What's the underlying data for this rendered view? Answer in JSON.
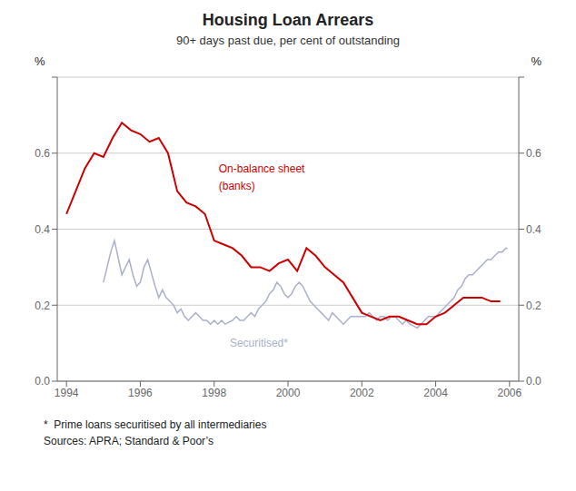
{
  "chart_data": {
    "type": "line",
    "title": "Housing Loan Arrears",
    "subtitle": "90+ days past due, per cent of outstanding",
    "ylabel": "%",
    "y2label": "%",
    "annotations": [
      "*  Prime loans securitised by all intermediaries",
      "Sources: APRA; Standard & Poor’s"
    ],
    "xlim": [
      1993.75,
      2006.25
    ],
    "xticks": [
      1994,
      1996,
      1998,
      2000,
      2002,
      2004,
      2006
    ],
    "ylim": [
      0.0,
      0.8
    ],
    "yticks": [
      {
        "value": 0.0,
        "label": "0.0"
      },
      0.2,
      0.4,
      0.6,
      {
        "value": 0.8,
        "label": null
      }
    ],
    "y2lim": [
      0.0,
      0.8
    ],
    "y2ticks": [
      {
        "value": 0.0,
        "label": "0.0"
      },
      0.2,
      0.4,
      0.6,
      {
        "value": 0.8,
        "label": null
      }
    ],
    "grid": "y",
    "series": [
      {
        "name": "Securitised*",
        "color": "#aab0cc",
        "x": [
          1995.0,
          1995.1,
          1995.2,
          1995.3,
          1995.5,
          1995.6,
          1995.7,
          1995.8,
          1995.9,
          1996.0,
          1996.1,
          1996.2,
          1996.4,
          1996.5,
          1996.6,
          1996.7,
          1996.8,
          1996.9,
          1997.0,
          1997.1,
          1997.2,
          1997.3,
          1997.5,
          1997.6,
          1997.7,
          1997.8,
          1997.9,
          1998.0,
          1998.1,
          1998.2,
          1998.3,
          1998.5,
          1998.6,
          1998.7,
          1998.8,
          1998.9,
          1999.0,
          1999.1,
          1999.2,
          1999.3,
          1999.4,
          1999.5,
          1999.6,
          1999.7,
          1999.8,
          1999.9,
          2000.0,
          2000.1,
          2000.2,
          2000.3,
          2000.4,
          2000.5,
          2000.6,
          2000.7,
          2000.8,
          2000.9,
          2001.0,
          2001.1,
          2001.2,
          2001.3,
          2001.4,
          2001.5,
          2001.6,
          2001.7,
          2001.8,
          2001.9,
          2002.0,
          2002.1,
          2002.2,
          2002.3,
          2002.4,
          2002.5,
          2002.6,
          2002.7,
          2002.8,
          2002.9,
          2003.0,
          2003.1,
          2003.2,
          2003.3,
          2003.5,
          2003.6,
          2003.7,
          2003.8,
          2003.9,
          2004.0,
          2004.1,
          2004.2,
          2004.3,
          2004.5,
          2004.6,
          2004.7,
          2004.8,
          2004.9,
          2005.0,
          2005.1,
          2005.2,
          2005.3,
          2005.4,
          2005.5,
          2005.6,
          2005.7,
          2005.8,
          2005.9,
          2005.95
        ],
        "values": [
          0.26,
          0.3,
          0.34,
          0.37,
          0.28,
          0.3,
          0.32,
          0.28,
          0.25,
          0.26,
          0.3,
          0.32,
          0.25,
          0.22,
          0.24,
          0.22,
          0.21,
          0.2,
          0.18,
          0.19,
          0.17,
          0.16,
          0.18,
          0.17,
          0.16,
          0.16,
          0.15,
          0.16,
          0.15,
          0.16,
          0.15,
          0.16,
          0.17,
          0.16,
          0.16,
          0.17,
          0.18,
          0.17,
          0.19,
          0.2,
          0.21,
          0.23,
          0.24,
          0.26,
          0.25,
          0.23,
          0.22,
          0.23,
          0.25,
          0.26,
          0.25,
          0.23,
          0.21,
          0.2,
          0.19,
          0.18,
          0.17,
          0.16,
          0.18,
          0.17,
          0.16,
          0.15,
          0.16,
          0.17,
          0.17,
          0.17,
          0.17,
          0.17,
          0.18,
          0.17,
          0.16,
          0.17,
          0.17,
          0.16,
          0.17,
          0.17,
          0.16,
          0.15,
          0.16,
          0.15,
          0.14,
          0.15,
          0.16,
          0.17,
          0.17,
          0.17,
          0.18,
          0.19,
          0.2,
          0.22,
          0.24,
          0.25,
          0.27,
          0.28,
          0.28,
          0.29,
          0.3,
          0.31,
          0.32,
          0.32,
          0.33,
          0.34,
          0.34,
          0.35,
          0.35
        ]
      },
      {
        "name": "On-balance sheet\n(banks)",
        "color": "#cc0000",
        "x": [
          1994.0,
          1994.25,
          1994.5,
          1994.75,
          1995.0,
          1995.25,
          1995.5,
          1995.75,
          1996.0,
          1996.25,
          1996.5,
          1996.75,
          1997.0,
          1997.25,
          1997.5,
          1997.75,
          1998.0,
          1998.25,
          1998.5,
          1998.75,
          1999.0,
          1999.25,
          1999.5,
          1999.75,
          2000.0,
          2000.25,
          2000.5,
          2000.75,
          2001.0,
          2001.25,
          2001.5,
          2001.75,
          2002.0,
          2002.25,
          2002.5,
          2002.75,
          2003.0,
          2003.25,
          2003.5,
          2003.75,
          2004.0,
          2004.25,
          2004.5,
          2004.75,
          2005.0,
          2005.25,
          2005.5,
          2005.75
        ],
        "values": [
          0.44,
          0.5,
          0.56,
          0.6,
          0.59,
          0.64,
          0.68,
          0.66,
          0.65,
          0.63,
          0.64,
          0.6,
          0.5,
          0.47,
          0.46,
          0.44,
          0.37,
          0.36,
          0.35,
          0.33,
          0.3,
          0.3,
          0.29,
          0.31,
          0.32,
          0.29,
          0.35,
          0.33,
          0.3,
          0.28,
          0.26,
          0.22,
          0.18,
          0.17,
          0.16,
          0.17,
          0.17,
          0.16,
          0.15,
          0.15,
          0.17,
          0.18,
          0.2,
          0.22,
          0.22,
          0.22,
          0.21,
          0.21
        ]
      }
    ]
  }
}
